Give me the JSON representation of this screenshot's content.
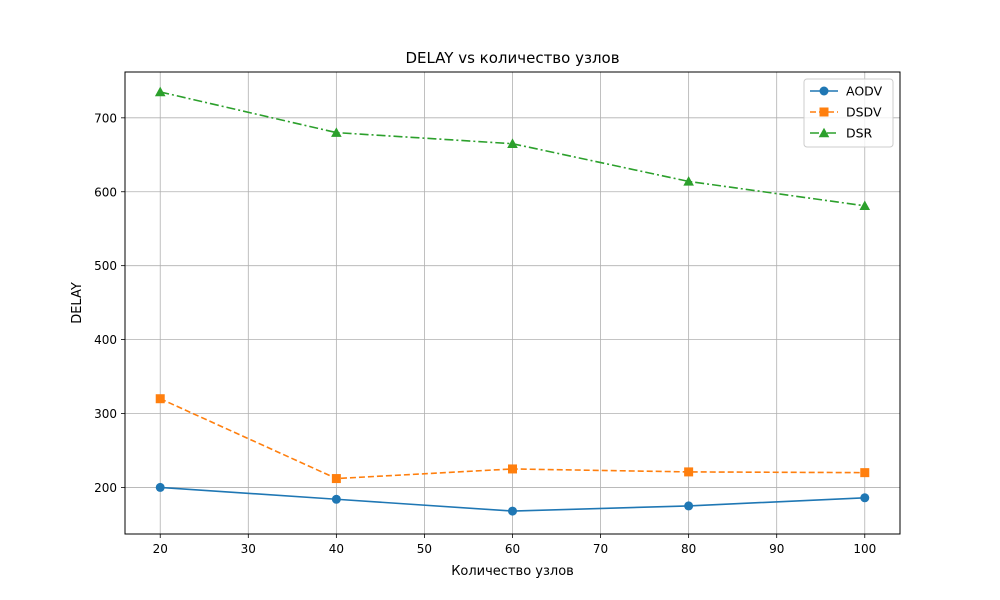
{
  "chart_data": {
    "type": "line",
    "title": "DELAY vs количество узлов",
    "xlabel": "Количество узлов",
    "ylabel": "DELAY",
    "x": [
      20,
      40,
      60,
      80,
      100
    ],
    "xlim": [
      16,
      104
    ],
    "ylim": [
      137,
      762
    ],
    "xticks": [
      20,
      30,
      40,
      50,
      60,
      70,
      80,
      90,
      100
    ],
    "yticks": [
      200,
      300,
      400,
      500,
      600,
      700
    ],
    "grid": true,
    "legend_position": "top-right",
    "series": [
      {
        "name": "AODV",
        "values": [
          200,
          184,
          168,
          175,
          186
        ],
        "color": "#1f77b4",
        "marker": "circle",
        "line_style": "solid"
      },
      {
        "name": "DSDV",
        "values": [
          320,
          212,
          225,
          221,
          220
        ],
        "color": "#ff7f0e",
        "marker": "square",
        "line_style": "dashed"
      },
      {
        "name": "DSR",
        "values": [
          735,
          680,
          665,
          614,
          581
        ],
        "color": "#2ca02c",
        "marker": "triangle",
        "line_style": "dashdot"
      }
    ]
  }
}
